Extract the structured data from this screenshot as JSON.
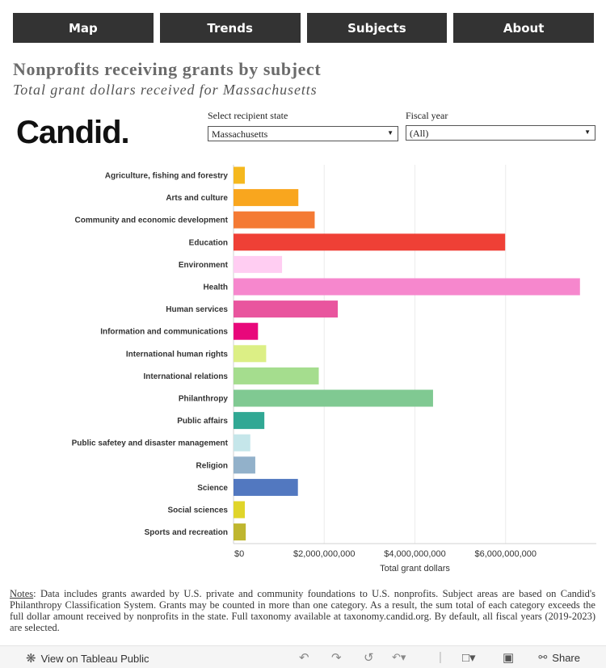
{
  "nav": {
    "items": [
      {
        "label": "Map"
      },
      {
        "label": "Trends"
      },
      {
        "label": "Subjects"
      },
      {
        "label": "About"
      }
    ]
  },
  "header": {
    "title": "Nonprofits receiving grants by subject",
    "subtitle": "Total grant dollars received for Massachusetts",
    "logo": "Candid."
  },
  "filters": {
    "state": {
      "label": "Select recipient state",
      "value": "Massachusetts"
    },
    "year": {
      "label": "Fiscal year",
      "value": "(All)"
    }
  },
  "chart_data": {
    "type": "bar",
    "orientation": "horizontal",
    "categories": [
      "Agriculture, fishing and forestry",
      "Arts and culture",
      "Community and economic development",
      "Education",
      "Environment",
      "Health",
      "Human services",
      "Information and communications",
      "International human rights",
      "International relations",
      "Philanthropy",
      "Public affairs",
      "Public safetey and disaster management",
      "Religion",
      "Science",
      "Social sciences",
      "Sports and recreation"
    ],
    "values": [
      250000000,
      1430000000,
      1790000000,
      5990000000,
      1070000000,
      7640000000,
      2300000000,
      540000000,
      720000000,
      1880000000,
      4400000000,
      680000000,
      370000000,
      480000000,
      1420000000,
      250000000,
      270000000
    ],
    "colors": [
      "#f5b81e",
      "#f9a61e",
      "#f47a34",
      "#ef4036",
      "#ffcdf2",
      "#f687cd",
      "#e9559e",
      "#e8087b",
      "#dcef85",
      "#a5dd8e",
      "#80c992",
      "#31a894",
      "#c5e6ea",
      "#92b1ca",
      "#5278c0",
      "#e0d52a",
      "#bfb62f"
    ],
    "xlabel": "Total grant dollars",
    "ticks": [
      0,
      2000000000,
      4000000000,
      6000000000
    ],
    "tick_labels": [
      "$0",
      "$2,000,000,000",
      "$4,000,000,000",
      "$6,000,000,000"
    ],
    "xlim": [
      0,
      8000000000
    ],
    "grid": true
  },
  "notes": {
    "label": "Notes",
    "text": ": Data includes grants awarded by U.S. private and community foundations to U.S. nonprofits. Subject areas are based on Candid's Philanthropy Classification System. Grants may be counted in more than one category. As a result, the sum total of each category exceeds the full dollar amount received by nonprofits in the state. Full taxonomy available at taxonomy.candid.org. By default, all fiscal years (2019-2023) are selected."
  },
  "toolbar": {
    "view_label": "View on Tableau Public",
    "share_label": "Share",
    "icons": [
      "tableau-icon",
      "undo-icon",
      "redo-icon",
      "revert-icon",
      "pause-icon",
      "comment-icon",
      "fullscreen-icon",
      "share-icon"
    ]
  }
}
